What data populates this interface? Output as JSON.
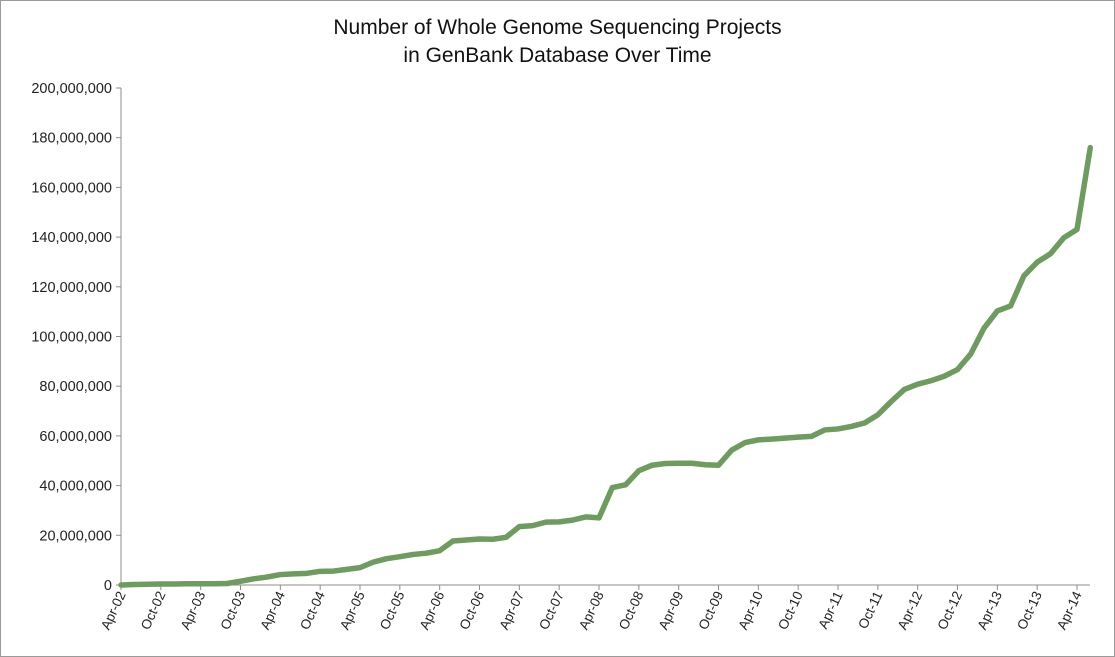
{
  "chart_data": {
    "type": "line",
    "title_lines": [
      "Number of Whole Genome Sequencing Projects",
      "in GenBank Database Over Time"
    ],
    "xlabel": "",
    "ylabel": "",
    "ylim": [
      0,
      200000000
    ],
    "y_ticks": [
      "0",
      "20,000,000",
      "40,000,000",
      "60,000,000",
      "80,000,000",
      "100,000,000",
      "120,000,000",
      "140,000,000",
      "160,000,000",
      "180,000,000",
      "200,000,000"
    ],
    "x_ticks": [
      "Apr-02",
      "Oct-02",
      "Apr-03",
      "Oct-03",
      "Apr-04",
      "Oct-04",
      "Apr-05",
      "Oct-05",
      "Apr-06",
      "Oct-06",
      "Apr-07",
      "Oct-07",
      "Apr-08",
      "Oct-08",
      "Apr-09",
      "Oct-09",
      "Apr-10",
      "Oct-10",
      "Apr-11",
      "Oct-11",
      "Apr-12",
      "Oct-12",
      "Apr-13",
      "Oct-13",
      "Apr-14"
    ],
    "grid": false,
    "legend": "none",
    "series_color": "#6e9b5e",
    "series": [
      {
        "x": [
          "Apr-02",
          "Jun-02",
          "Aug-02",
          "Oct-02",
          "Dec-02",
          "Feb-03",
          "Apr-03",
          "Jun-03",
          "Aug-03",
          "Oct-03",
          "Dec-03",
          "Feb-04",
          "Apr-04",
          "Jun-04",
          "Aug-04",
          "Oct-04",
          "Dec-04",
          "Feb-05",
          "Apr-05",
          "Jun-05",
          "Aug-05",
          "Oct-05",
          "Dec-05",
          "Feb-06",
          "Apr-06",
          "Jun-06",
          "Aug-06",
          "Oct-06",
          "Dec-06",
          "Feb-07",
          "Apr-07",
          "Jun-07",
          "Aug-07",
          "Oct-07",
          "Dec-07",
          "Feb-08",
          "Apr-08",
          "Jun-08",
          "Aug-08",
          "Oct-08",
          "Dec-08",
          "Feb-09",
          "Apr-09",
          "Jun-09",
          "Aug-09",
          "Oct-09",
          "Dec-09",
          "Feb-10",
          "Apr-10",
          "Jun-10",
          "Aug-10",
          "Oct-10",
          "Dec-10",
          "Feb-11",
          "Apr-11",
          "Jun-11",
          "Aug-11",
          "Oct-11",
          "Dec-11",
          "Feb-12",
          "Apr-12",
          "Jun-12",
          "Aug-12",
          "Oct-12",
          "Dec-12",
          "Feb-13",
          "Apr-13",
          "Jun-13",
          "Aug-13",
          "Oct-13",
          "Dec-13",
          "Feb-14",
          "Apr-14",
          "Jun-14"
        ],
        "values": [
          0,
          200000,
          300000,
          400000,
          400000,
          500000,
          500000,
          500000,
          600000,
          1500000,
          2500000,
          3200000,
          4200000,
          4500000,
          4700000,
          5500000,
          5600000,
          6300000,
          7000000,
          9200000,
          10600000,
          11400000,
          12300000,
          12800000,
          13800000,
          17700000,
          18100000,
          18500000,
          18400000,
          19200000,
          23500000,
          23900000,
          25300000,
          25400000,
          26100000,
          27400000,
          27000000,
          39200000,
          40300000,
          46000000,
          48200000,
          48900000,
          49000000,
          49000000,
          48400000,
          48200000,
          54300000,
          57300000,
          58400000,
          58700000,
          59100000,
          59500000,
          59800000,
          62400000,
          62800000,
          63800000,
          65200000,
          68500000,
          73800000,
          78700000,
          80800000,
          82200000,
          84000000,
          86700000,
          93000000,
          103400000,
          110300000,
          112300000,
          124400000,
          129900000,
          133300000,
          139700000,
          143100000,
          176000000
        ]
      }
    ]
  }
}
